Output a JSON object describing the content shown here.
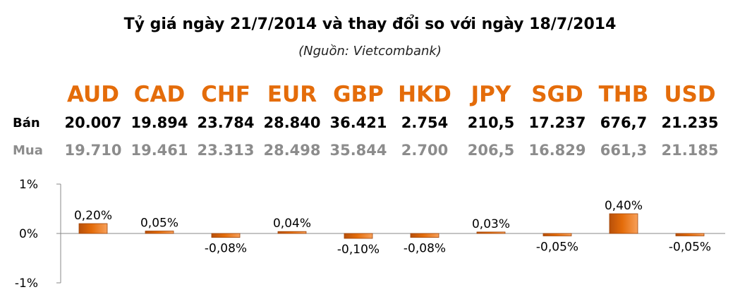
{
  "header": {
    "title": "Tỷ giá ngày 21/7/2014 và thay đổi so với ngày 18/7/2014",
    "source": "(Nguồn: Vietcombank)"
  },
  "table": {
    "ban_label": "Bán",
    "mua_label": "Mua",
    "currencies": [
      "AUD",
      "CAD",
      "CHF",
      "EUR",
      "GBP",
      "HKD",
      "JPY",
      "SGD",
      "THB",
      "USD"
    ],
    "ban": [
      "20.007",
      "19.894",
      "23.784",
      "28.840",
      "36.421",
      "2.754",
      "210,5",
      "17.237",
      "676,7",
      "21.235"
    ],
    "mua": [
      "19.710",
      "19.461",
      "23.313",
      "28.498",
      "35.844",
      "2.700",
      "206,5",
      "16.829",
      "661,3",
      "21.185"
    ]
  },
  "colors": {
    "currency_code": "#e46c0a",
    "bar_fill": "#e46c0a",
    "mua_text": "#8c8c8c"
  },
  "chart_data": {
    "type": "bar",
    "categories": [
      "AUD",
      "CAD",
      "CHF",
      "EUR",
      "GBP",
      "HKD",
      "JPY",
      "SGD",
      "THB",
      "USD"
    ],
    "values": [
      0.2,
      0.05,
      -0.08,
      0.04,
      -0.1,
      -0.08,
      0.03,
      -0.05,
      0.4,
      -0.05
    ],
    "data_labels": [
      "0,20%",
      "0,05%",
      "-0,08%",
      "0,04%",
      "-0,10%",
      "-0,08%",
      "0,03%",
      "-0,05%",
      "0,40%",
      "-0,05%"
    ],
    "ylim": [
      -1,
      1
    ],
    "yticks": [
      1,
      0,
      -1
    ],
    "ytick_labels": [
      "1%",
      "0%",
      "-1%"
    ],
    "grid": false,
    "legend": "none"
  }
}
